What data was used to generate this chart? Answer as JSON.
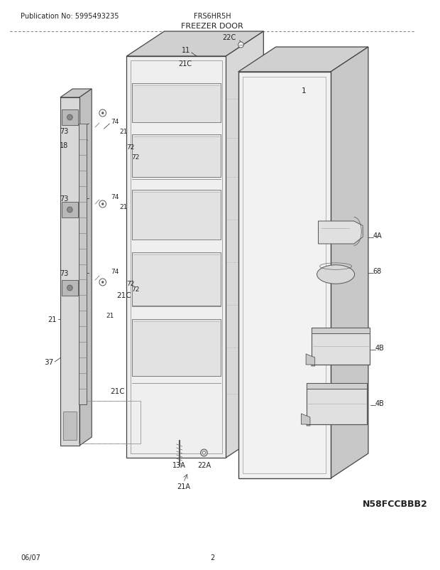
{
  "title": "FREEZER DOOR",
  "pub_no": "Publication No: 5995493235",
  "model": "FRS6HR5H",
  "diagram_code": "N58FCCBBB2",
  "date": "06/07",
  "page": "2",
  "bg_color": "#ffffff",
  "line_color": "#444444",
  "text_color": "#222222",
  "gray_fill": "#e8e8e8",
  "dark_gray": "#cccccc",
  "mid_gray": "#d8d8d8"
}
